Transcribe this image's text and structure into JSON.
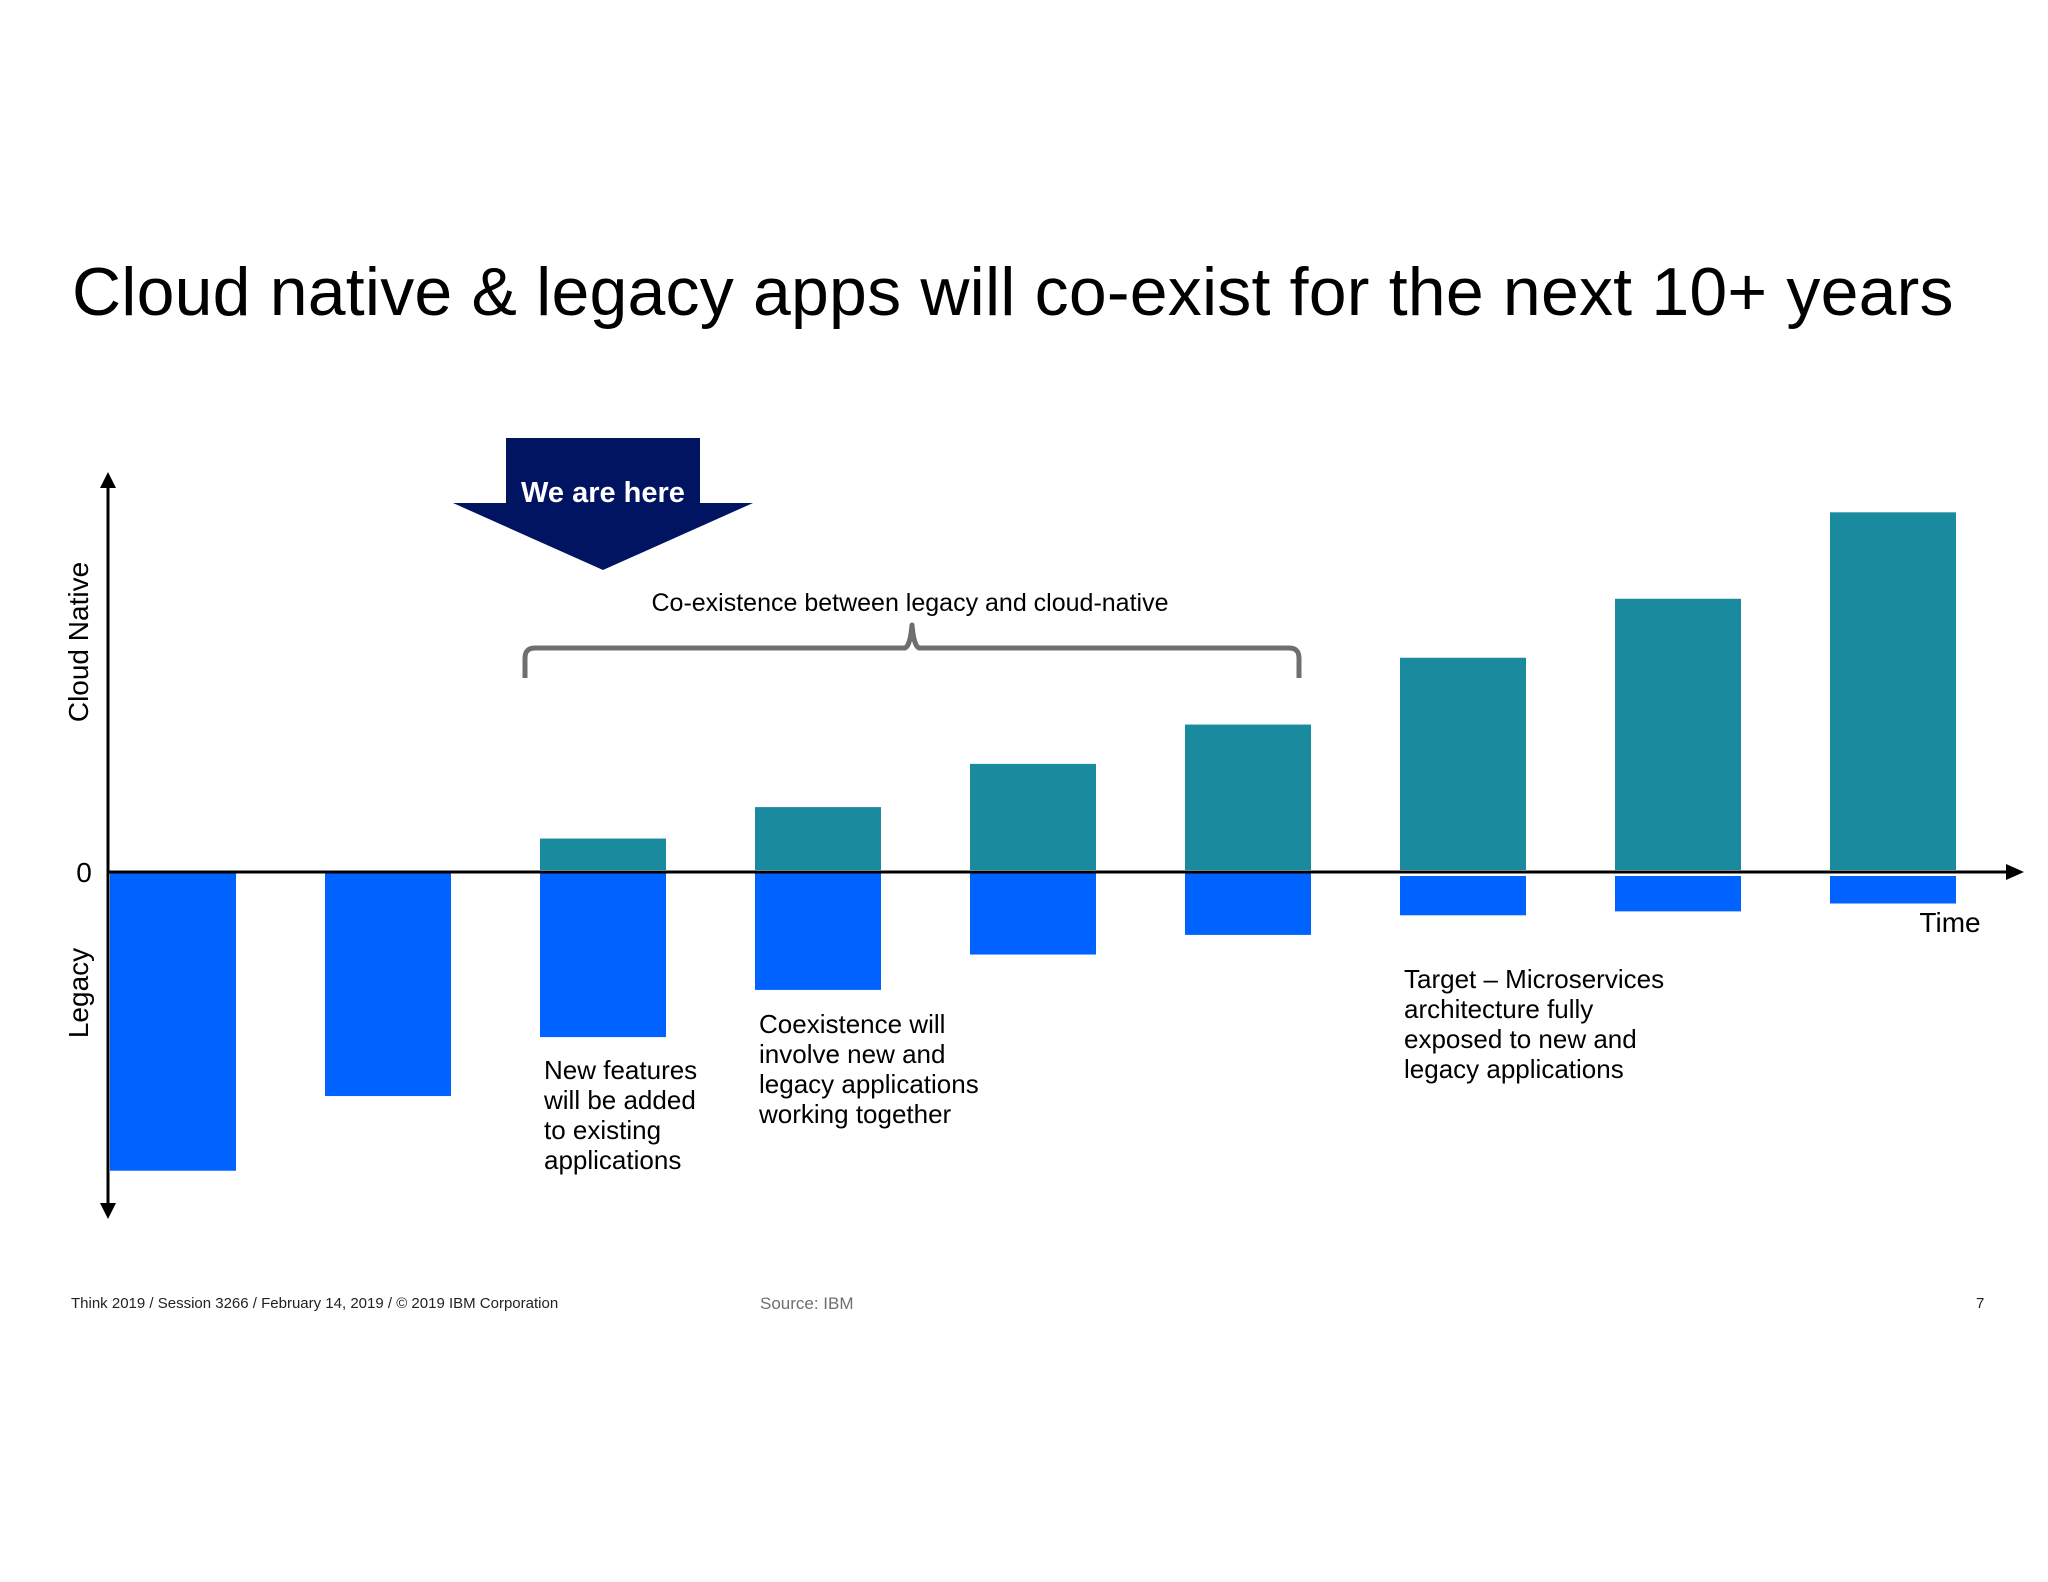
{
  "slide": {
    "title": "Cloud native & legacy apps will co-exist for the next 10+ years",
    "footer": "Think 2019 / Session 3266 / February 14, 2019 / © 2019 IBM Corporation",
    "source": "Source: IBM",
    "page_number": "7"
  },
  "colors": {
    "cloud_native": "#1a8a9e",
    "legacy": "#0062ff",
    "callout": "#001462",
    "brace": "#6f6f6f",
    "axis": "#000000"
  },
  "chart_data": {
    "type": "bar",
    "categories": [
      "",
      "",
      "",
      "",
      "",
      "",
      "",
      "",
      ""
    ],
    "series": [
      {
        "key": "cloud_native",
        "values": [
          0,
          0,
          0.8,
          1.6,
          2.7,
          3.7,
          5.4,
          6.9,
          9.1
        ]
      },
      {
        "key": "legacy",
        "values": [
          -7.6,
          -5.7,
          -4.2,
          -3.0,
          -2.1,
          -1.6,
          -1.0,
          -0.9,
          -0.7
        ]
      }
    ],
    "ylim": [
      -8.7,
      10.1
    ],
    "zero_label": "0",
    "xlabel": "Time",
    "ylabel_up": "Cloud Native",
    "ylabel_down": "Legacy",
    "grid": false,
    "annotations": {
      "callout": {
        "text": "We are here",
        "category_index": 2
      },
      "brace": {
        "text": "Co-existence between legacy and cloud-native",
        "from_index": 2,
        "to_index": 5
      },
      "notes": [
        {
          "category_index": 2,
          "lines": [
            "New features",
            "will be added",
            "to existing",
            "applications"
          ]
        },
        {
          "category_index": 3,
          "lines": [
            "Coexistence will",
            "involve new and",
            "legacy applications",
            "working together"
          ]
        },
        {
          "category_index": 6,
          "lines": [
            "Target – Microservices",
            "architecture fully",
            "exposed to new and",
            "legacy applications"
          ]
        }
      ]
    }
  }
}
